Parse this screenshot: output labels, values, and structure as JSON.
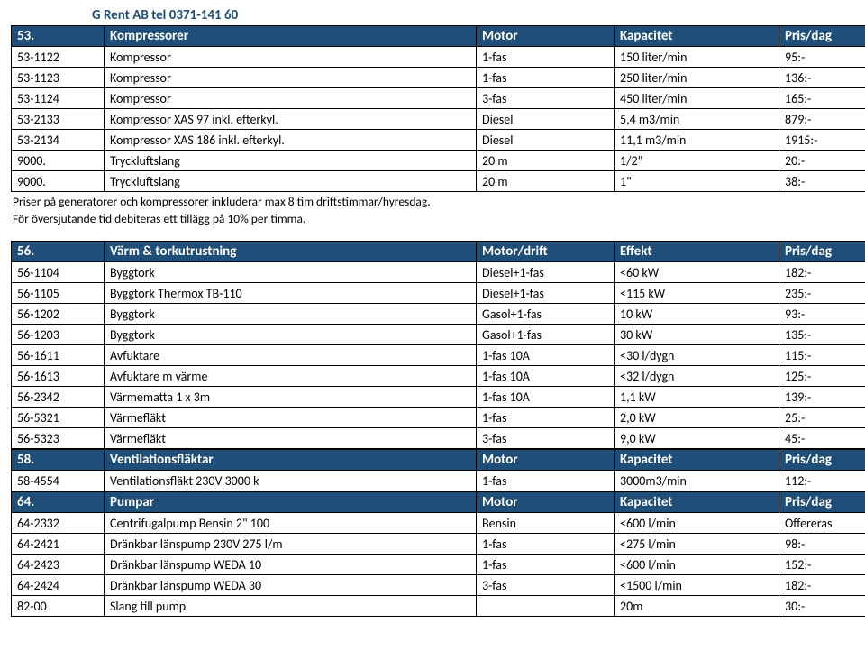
{
  "company": "G Rent AB  tel 0371-141 60",
  "sections": [
    {
      "header": [
        "53.",
        "Kompressorer",
        "Motor",
        "Kapacitet",
        "Pris/dag"
      ],
      "rows": [
        [
          "53-1122",
          "Kompressor",
          "1-fas",
          "150 liter/min",
          "95:-"
        ],
        [
          "53-1123",
          "Kompressor",
          "1-fas",
          "250 liter/min",
          "136:-"
        ],
        [
          "53-1124",
          "Kompressor",
          "3-fas",
          "450 liter/min",
          "165:-"
        ],
        [
          "53-2133",
          "Kompressor XAS 97 inkl. efterkyl.",
          "Diesel",
          "5,4 m3/min",
          "879:-"
        ],
        [
          "53-2134",
          "Kompressor XAS 186 inkl. efterkyl.",
          "Diesel",
          "11,1 m3/min",
          "1915:-"
        ],
        [
          "9000.",
          "Tryckluftslang",
          "20 m",
          "1/2\"",
          "20:-"
        ],
        [
          "9000.",
          "Tryckluftslang",
          "20 m",
          "1\"",
          "38:-"
        ]
      ],
      "notes": [
        "Priser på generatorer och kompressorer inkluderar max 8 tim driftstimmar/hyresdag.",
        "För översjutande tid debiteras ett tillägg på 10% per timma."
      ]
    },
    {
      "header": [
        "56.",
        "Värm & torkutrustning",
        "Motor/drift",
        "Effekt",
        "Pris/dag"
      ],
      "rows": [
        [
          "56-1104",
          "Byggtork",
          "Diesel+1-fas",
          "<60 kW",
          "182:-"
        ],
        [
          "56-1105",
          "Byggtork  Thermox TB-110",
          "Diesel+1-fas",
          "<115 kW",
          "235:-"
        ],
        [
          "56-1202",
          "Byggtork",
          "Gasol+1-fas",
          "10 kW",
          "93:-"
        ],
        [
          "56-1203",
          "Byggtork",
          "Gasol+1-fas",
          "30 kW",
          "135:-"
        ],
        [
          "56-1611",
          "Avfuktare",
          "1-fas 10A",
          "<30 l/dygn",
          "115:-"
        ],
        [
          "56-1613",
          "Avfuktare m värme",
          "1-fas 10A",
          "<32 l/dygn",
          "125:-"
        ],
        [
          "56-2342",
          "Värmematta 1 x 3m",
          "1-fas 10A",
          "1,1 kW",
          "139:-"
        ],
        [
          "56-5321",
          "Värmefläkt",
          "1-fas",
          "2,0 kW",
          "25:-"
        ],
        [
          "56-5323",
          "Värmefläkt",
          "3-fas",
          "9,0 kW",
          "45:-"
        ]
      ]
    },
    {
      "header": [
        "58.",
        "Ventilationsfläktar",
        "Motor",
        "Kapacitet",
        "Pris/dag"
      ],
      "rows": [
        [
          "58-4554",
          "Ventilationsfläkt 230V 3000 k",
          "1-fas",
          "3000m3/min",
          "112:-"
        ]
      ]
    },
    {
      "header": [
        "64.",
        "Pumpar",
        "Motor",
        "Kapacitet",
        "Pris/dag"
      ],
      "rows": [
        [
          "64-2332",
          "Centrifugalpump Bensin 2\" 100",
          "Bensin",
          "<600 l/min",
          "Offereras"
        ],
        [
          "64-2421",
          "Dränkbar länspump 230V 275 l/m",
          "1-fas",
          "<275 l/min",
          "98:-"
        ],
        [
          "64-2423",
          "Dränkbar länspump WEDA 10",
          "1-fas",
          "<600 l/min",
          "152:-"
        ],
        [
          "64-2424",
          "Dränkbar länspump WEDA 30",
          "3-fas",
          "<1500 l/min",
          "182:-"
        ],
        [
          "82-00",
          "Slang till pump",
          "",
          "20m",
          "30:-"
        ]
      ]
    }
  ]
}
